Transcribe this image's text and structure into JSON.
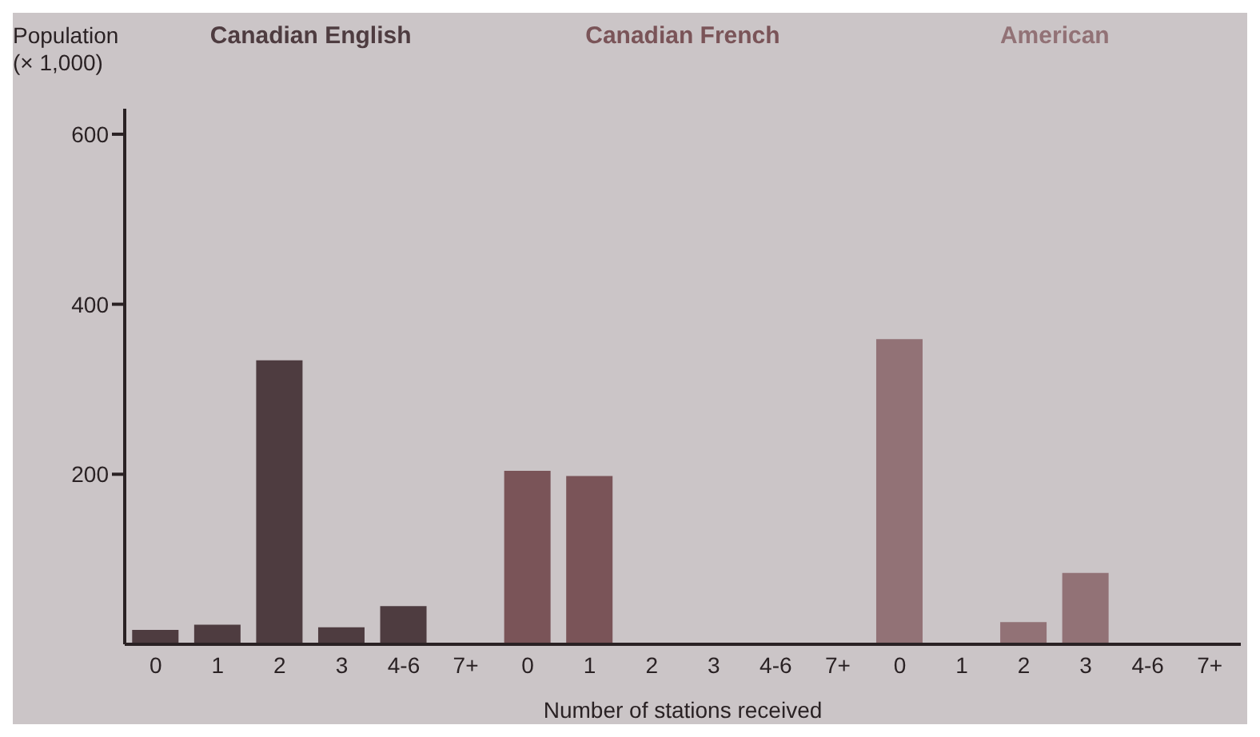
{
  "chart_data": {
    "type": "bar",
    "ylabel": "Population\n(× 1,000)",
    "xlabel": "Number of stations received",
    "categories": [
      "0",
      "1",
      "2",
      "3",
      "4-6",
      "7+",
      "0",
      "1",
      "2",
      "3",
      "4-6",
      "7+",
      "0",
      "1",
      "2",
      "3",
      "4-6",
      "7+"
    ],
    "ylim": [
      0,
      630
    ],
    "yticks": [
      200,
      400,
      600
    ],
    "series": [
      {
        "name": "Canadian English",
        "color": "#4e3c40",
        "values": [
          17,
          23,
          334,
          20,
          45,
          0,
          null,
          null,
          null,
          null,
          null,
          null,
          null,
          null,
          null,
          null,
          null,
          null
        ]
      },
      {
        "name": "Canadian French",
        "color": "#7a5458",
        "values": [
          null,
          null,
          null,
          null,
          null,
          null,
          204,
          198,
          0,
          0,
          0,
          0,
          null,
          null,
          null,
          null,
          null,
          null
        ]
      },
      {
        "name": "American",
        "color": "#927276",
        "values": [
          null,
          null,
          null,
          null,
          null,
          null,
          null,
          null,
          null,
          null,
          null,
          null,
          359,
          0,
          26,
          84,
          0,
          0
        ]
      }
    ]
  }
}
